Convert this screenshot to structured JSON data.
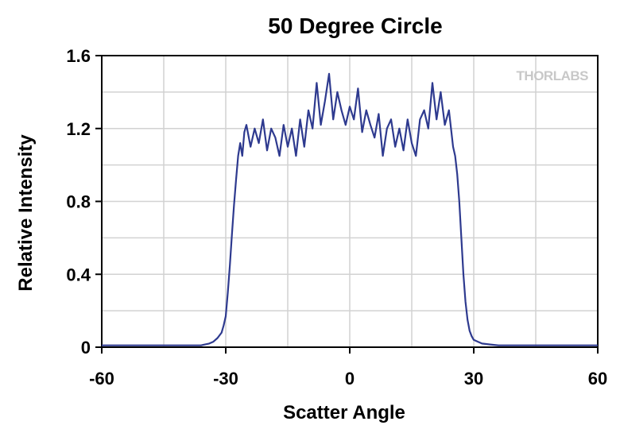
{
  "chart_data": {
    "type": "line",
    "title": "50 Degree Circle",
    "xlabel": "Scatter Angle",
    "ylabel": "Relative Intensity",
    "xlim": [
      -60,
      60
    ],
    "ylim": [
      0,
      1.6
    ],
    "x_ticks": [
      "-60",
      "-30",
      "0",
      "30",
      "60"
    ],
    "y_ticks": [
      "0",
      "0.4",
      "0.8",
      "1.2",
      "1.6"
    ],
    "x_tick_values": [
      -60,
      -30,
      0,
      30,
      60
    ],
    "y_tick_values": [
      0,
      0.4,
      0.8,
      1.2,
      1.6
    ],
    "x_grid": [
      -45,
      -30,
      -15,
      0,
      15,
      30,
      45
    ],
    "y_grid": [
      0.2,
      0.4,
      0.6,
      0.8,
      1.0,
      1.2,
      1.4
    ],
    "grid": true,
    "series_color": "#2e3a8f",
    "series": [
      {
        "x": [
          -60,
          -55,
          -50,
          -45,
          -40,
          -36,
          -34,
          -33,
          -32,
          -31,
          -30.5,
          -30,
          -29.5,
          -29,
          -28.5,
          -28,
          -27.5,
          -27,
          -26.5,
          -26,
          -25.5,
          -25,
          -24,
          -23,
          -22,
          -21,
          -20,
          -19,
          -18,
          -17,
          -16,
          -15,
          -14,
          -13,
          -12,
          -11,
          -10,
          -9,
          -8,
          -7,
          -6,
          -5,
          -4,
          -3,
          -2,
          -1,
          0,
          1,
          2,
          3,
          4,
          5,
          6,
          7,
          8,
          9,
          10,
          11,
          12,
          13,
          14,
          15,
          16,
          17,
          18,
          19,
          20,
          21,
          22,
          23,
          24,
          24.5,
          25,
          25.5,
          26,
          26.5,
          27,
          27.5,
          28,
          28.5,
          29,
          29.5,
          30,
          31,
          32,
          34,
          36,
          40,
          45,
          50,
          55,
          60
        ],
        "y": [
          0.01,
          0.01,
          0.01,
          0.01,
          0.01,
          0.01,
          0.02,
          0.03,
          0.05,
          0.08,
          0.12,
          0.17,
          0.3,
          0.45,
          0.62,
          0.78,
          0.92,
          1.05,
          1.12,
          1.05,
          1.18,
          1.22,
          1.1,
          1.2,
          1.12,
          1.25,
          1.08,
          1.2,
          1.15,
          1.05,
          1.22,
          1.1,
          1.2,
          1.05,
          1.25,
          1.1,
          1.3,
          1.2,
          1.45,
          1.22,
          1.35,
          1.5,
          1.25,
          1.4,
          1.3,
          1.22,
          1.32,
          1.25,
          1.42,
          1.18,
          1.3,
          1.22,
          1.15,
          1.28,
          1.05,
          1.2,
          1.25,
          1.1,
          1.2,
          1.08,
          1.25,
          1.12,
          1.05,
          1.25,
          1.3,
          1.2,
          1.45,
          1.25,
          1.4,
          1.22,
          1.3,
          1.2,
          1.1,
          1.05,
          0.95,
          0.8,
          0.6,
          0.4,
          0.25,
          0.15,
          0.09,
          0.06,
          0.04,
          0.03,
          0.02,
          0.015,
          0.01,
          0.01,
          0.01,
          0.01,
          0.01,
          0.01
        ]
      }
    ],
    "watermark": "THORLABS"
  }
}
